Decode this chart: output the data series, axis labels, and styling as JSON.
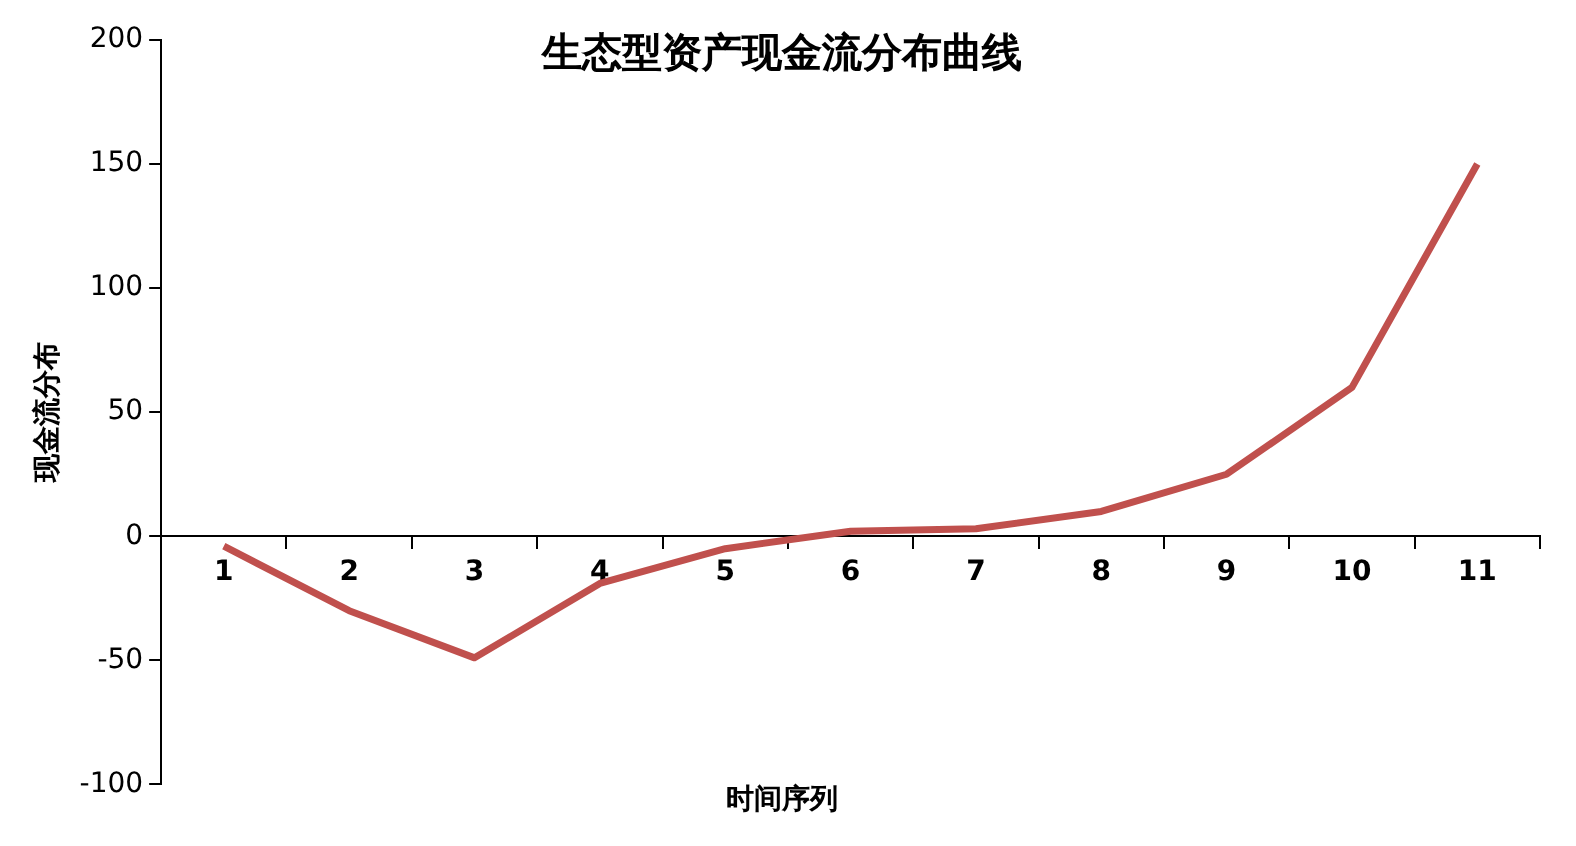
{
  "chart_data": {
    "type": "line",
    "title": "生态型资产现金流分布曲线",
    "xlabel": "时间序列",
    "ylabel": "现金流分布",
    "categories": [
      "1",
      "2",
      "3",
      "4",
      "5",
      "6",
      "7",
      "8",
      "9",
      "10",
      "11"
    ],
    "series": [
      {
        "color": "#c0504d",
        "values": [
          -4,
          -30,
          -49,
          -19,
          -5,
          2,
          3,
          10,
          25,
          60,
          150
        ]
      }
    ],
    "ylim": [
      -100,
      200
    ],
    "yticks": [
      -100,
      -50,
      0,
      50,
      100,
      150,
      200
    ],
    "grid": false,
    "legend": false,
    "marker": "none",
    "line_style": "solid"
  }
}
